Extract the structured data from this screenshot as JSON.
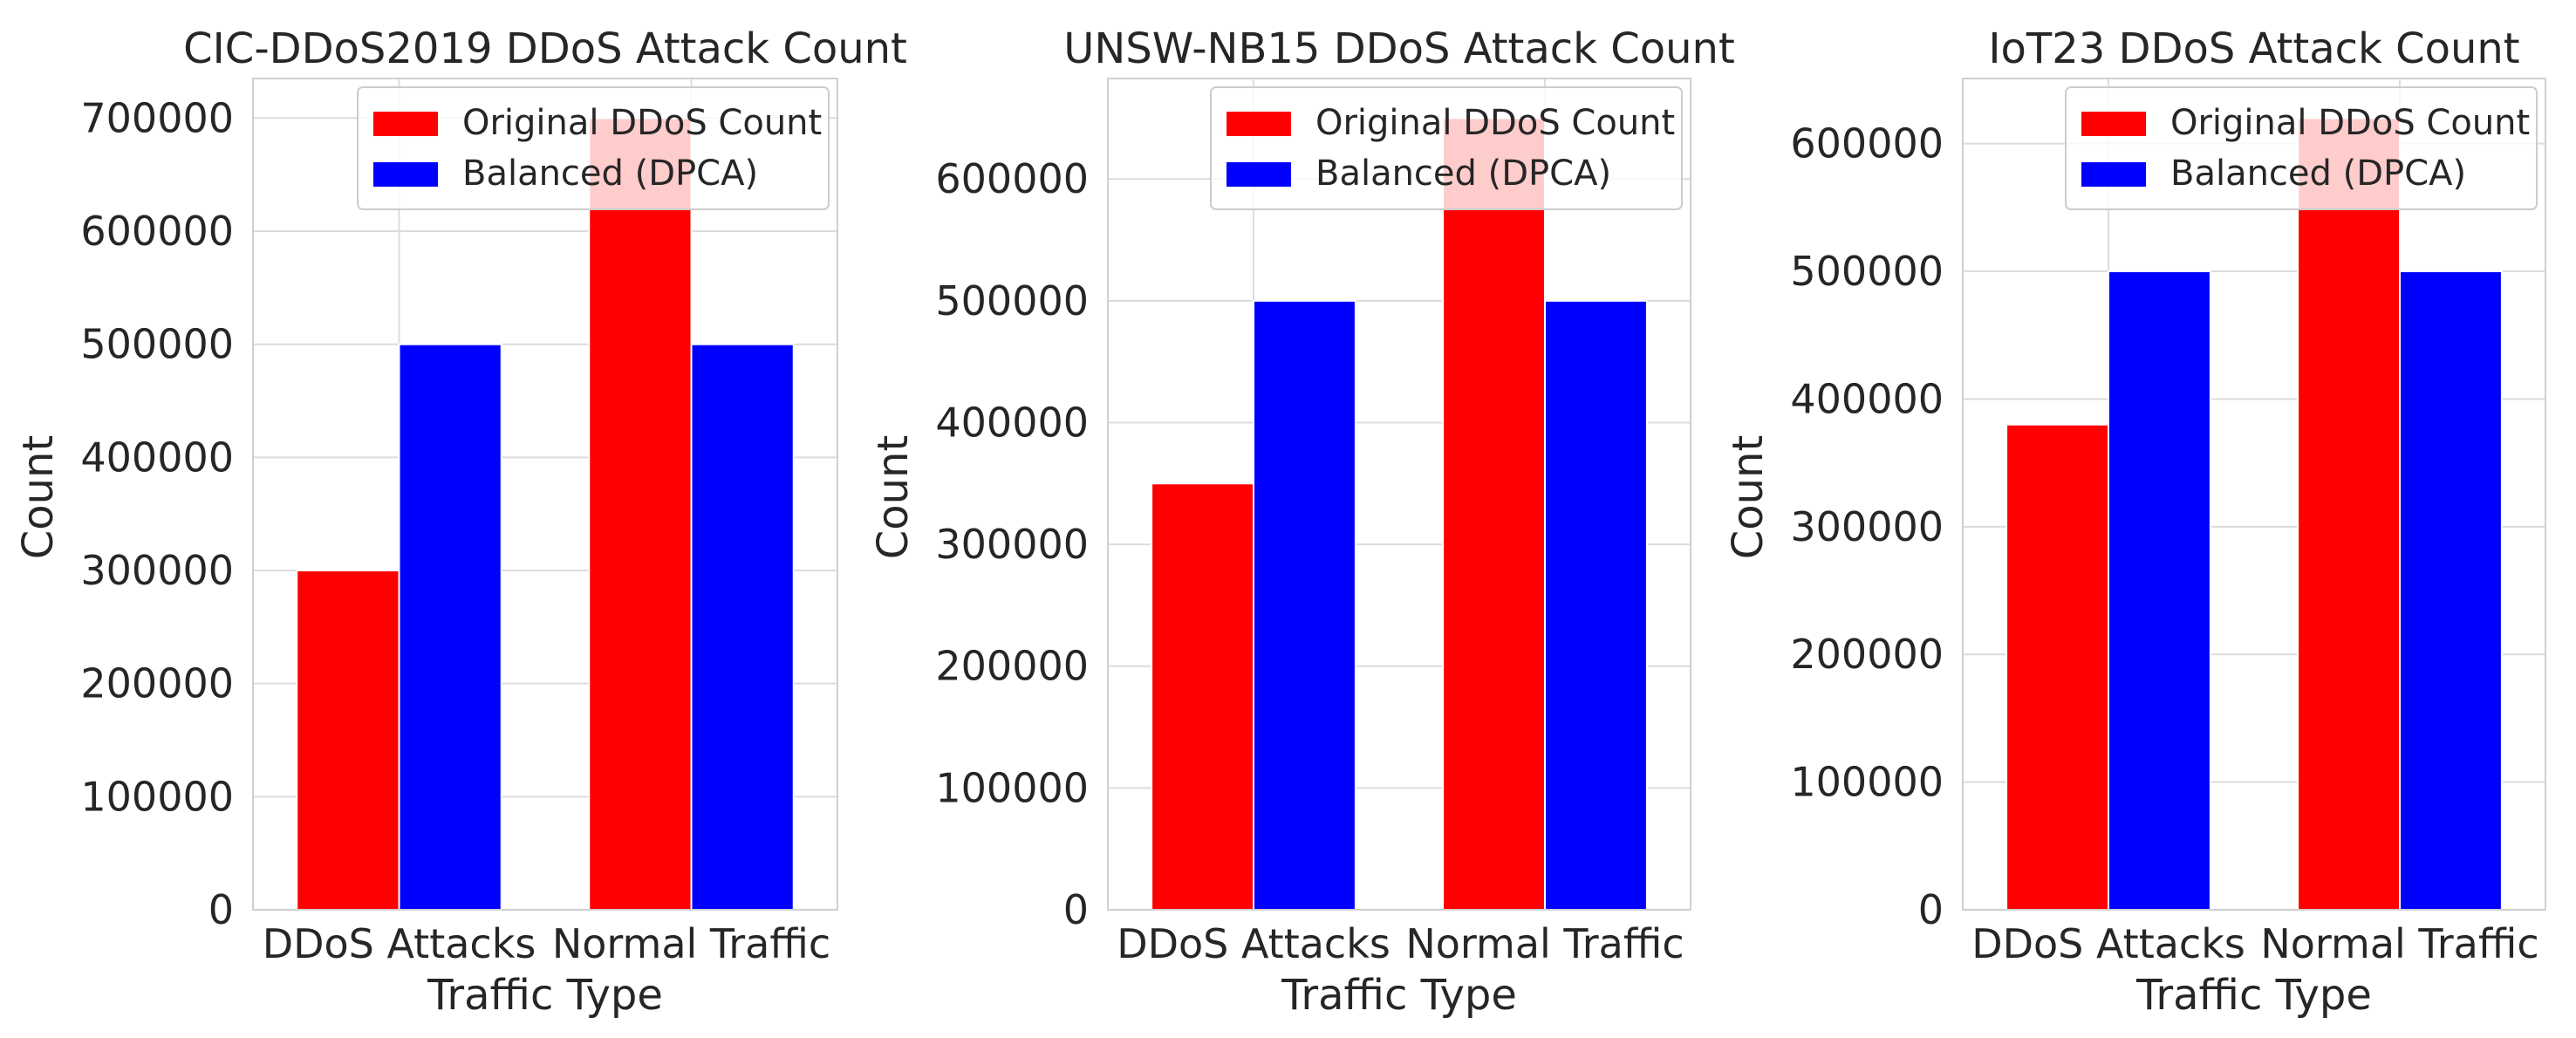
{
  "chart_data": [
    {
      "type": "bar",
      "title": "CIC-DDoS2019 DDoS Attack Count",
      "xlabel": "Traffic Type",
      "ylabel": "Count",
      "categories": [
        "DDoS Attacks",
        "Normal Traffic"
      ],
      "series": [
        {
          "name": "Original DDoS Count",
          "values": [
            300000,
            700000
          ],
          "color": "#ff0000"
        },
        {
          "name": "Balanced (DPCA)",
          "values": [
            500000,
            500000
          ],
          "color": "#0000ff"
        }
      ],
      "ylim": [
        0,
        735000
      ],
      "yticks": [
        0,
        100000,
        200000,
        300000,
        400000,
        500000,
        600000,
        700000
      ],
      "ytick_labels": [
        "0",
        "100000",
        "200000",
        "300000",
        "400000",
        "500000",
        "600000",
        "700000"
      ],
      "grid": true,
      "legend_position": "top-right"
    },
    {
      "type": "bar",
      "title": "UNSW-NB15 DDoS Attack Count",
      "xlabel": "Traffic Type",
      "ylabel": "Count",
      "categories": [
        "DDoS Attacks",
        "Normal Traffic"
      ],
      "series": [
        {
          "name": "Original DDoS Count",
          "values": [
            350000,
            650000
          ],
          "color": "#ff0000"
        },
        {
          "name": "Balanced (DPCA)",
          "values": [
            500000,
            500000
          ],
          "color": "#0000ff"
        }
      ],
      "ylim": [
        0,
        682500
      ],
      "yticks": [
        0,
        100000,
        200000,
        300000,
        400000,
        500000,
        600000
      ],
      "ytick_labels": [
        "0",
        "100000",
        "200000",
        "300000",
        "400000",
        "500000",
        "600000"
      ],
      "grid": true,
      "legend_position": "top-right"
    },
    {
      "type": "bar",
      "title": "IoT23 DDoS Attack Count",
      "xlabel": "Traffic Type",
      "ylabel": "Count",
      "categories": [
        "DDoS Attacks",
        "Normal Traffic"
      ],
      "series": [
        {
          "name": "Original DDoS Count",
          "values": [
            380000,
            620000
          ],
          "color": "#ff0000"
        },
        {
          "name": "Balanced (DPCA)",
          "values": [
            500000,
            500000
          ],
          "color": "#0000ff"
        }
      ],
      "ylim": [
        0,
        651000
      ],
      "yticks": [
        0,
        100000,
        200000,
        300000,
        400000,
        500000,
        600000
      ],
      "ytick_labels": [
        "0",
        "100000",
        "200000",
        "300000",
        "400000",
        "500000",
        "600000"
      ],
      "grid": true,
      "legend_position": "top-right"
    }
  ]
}
